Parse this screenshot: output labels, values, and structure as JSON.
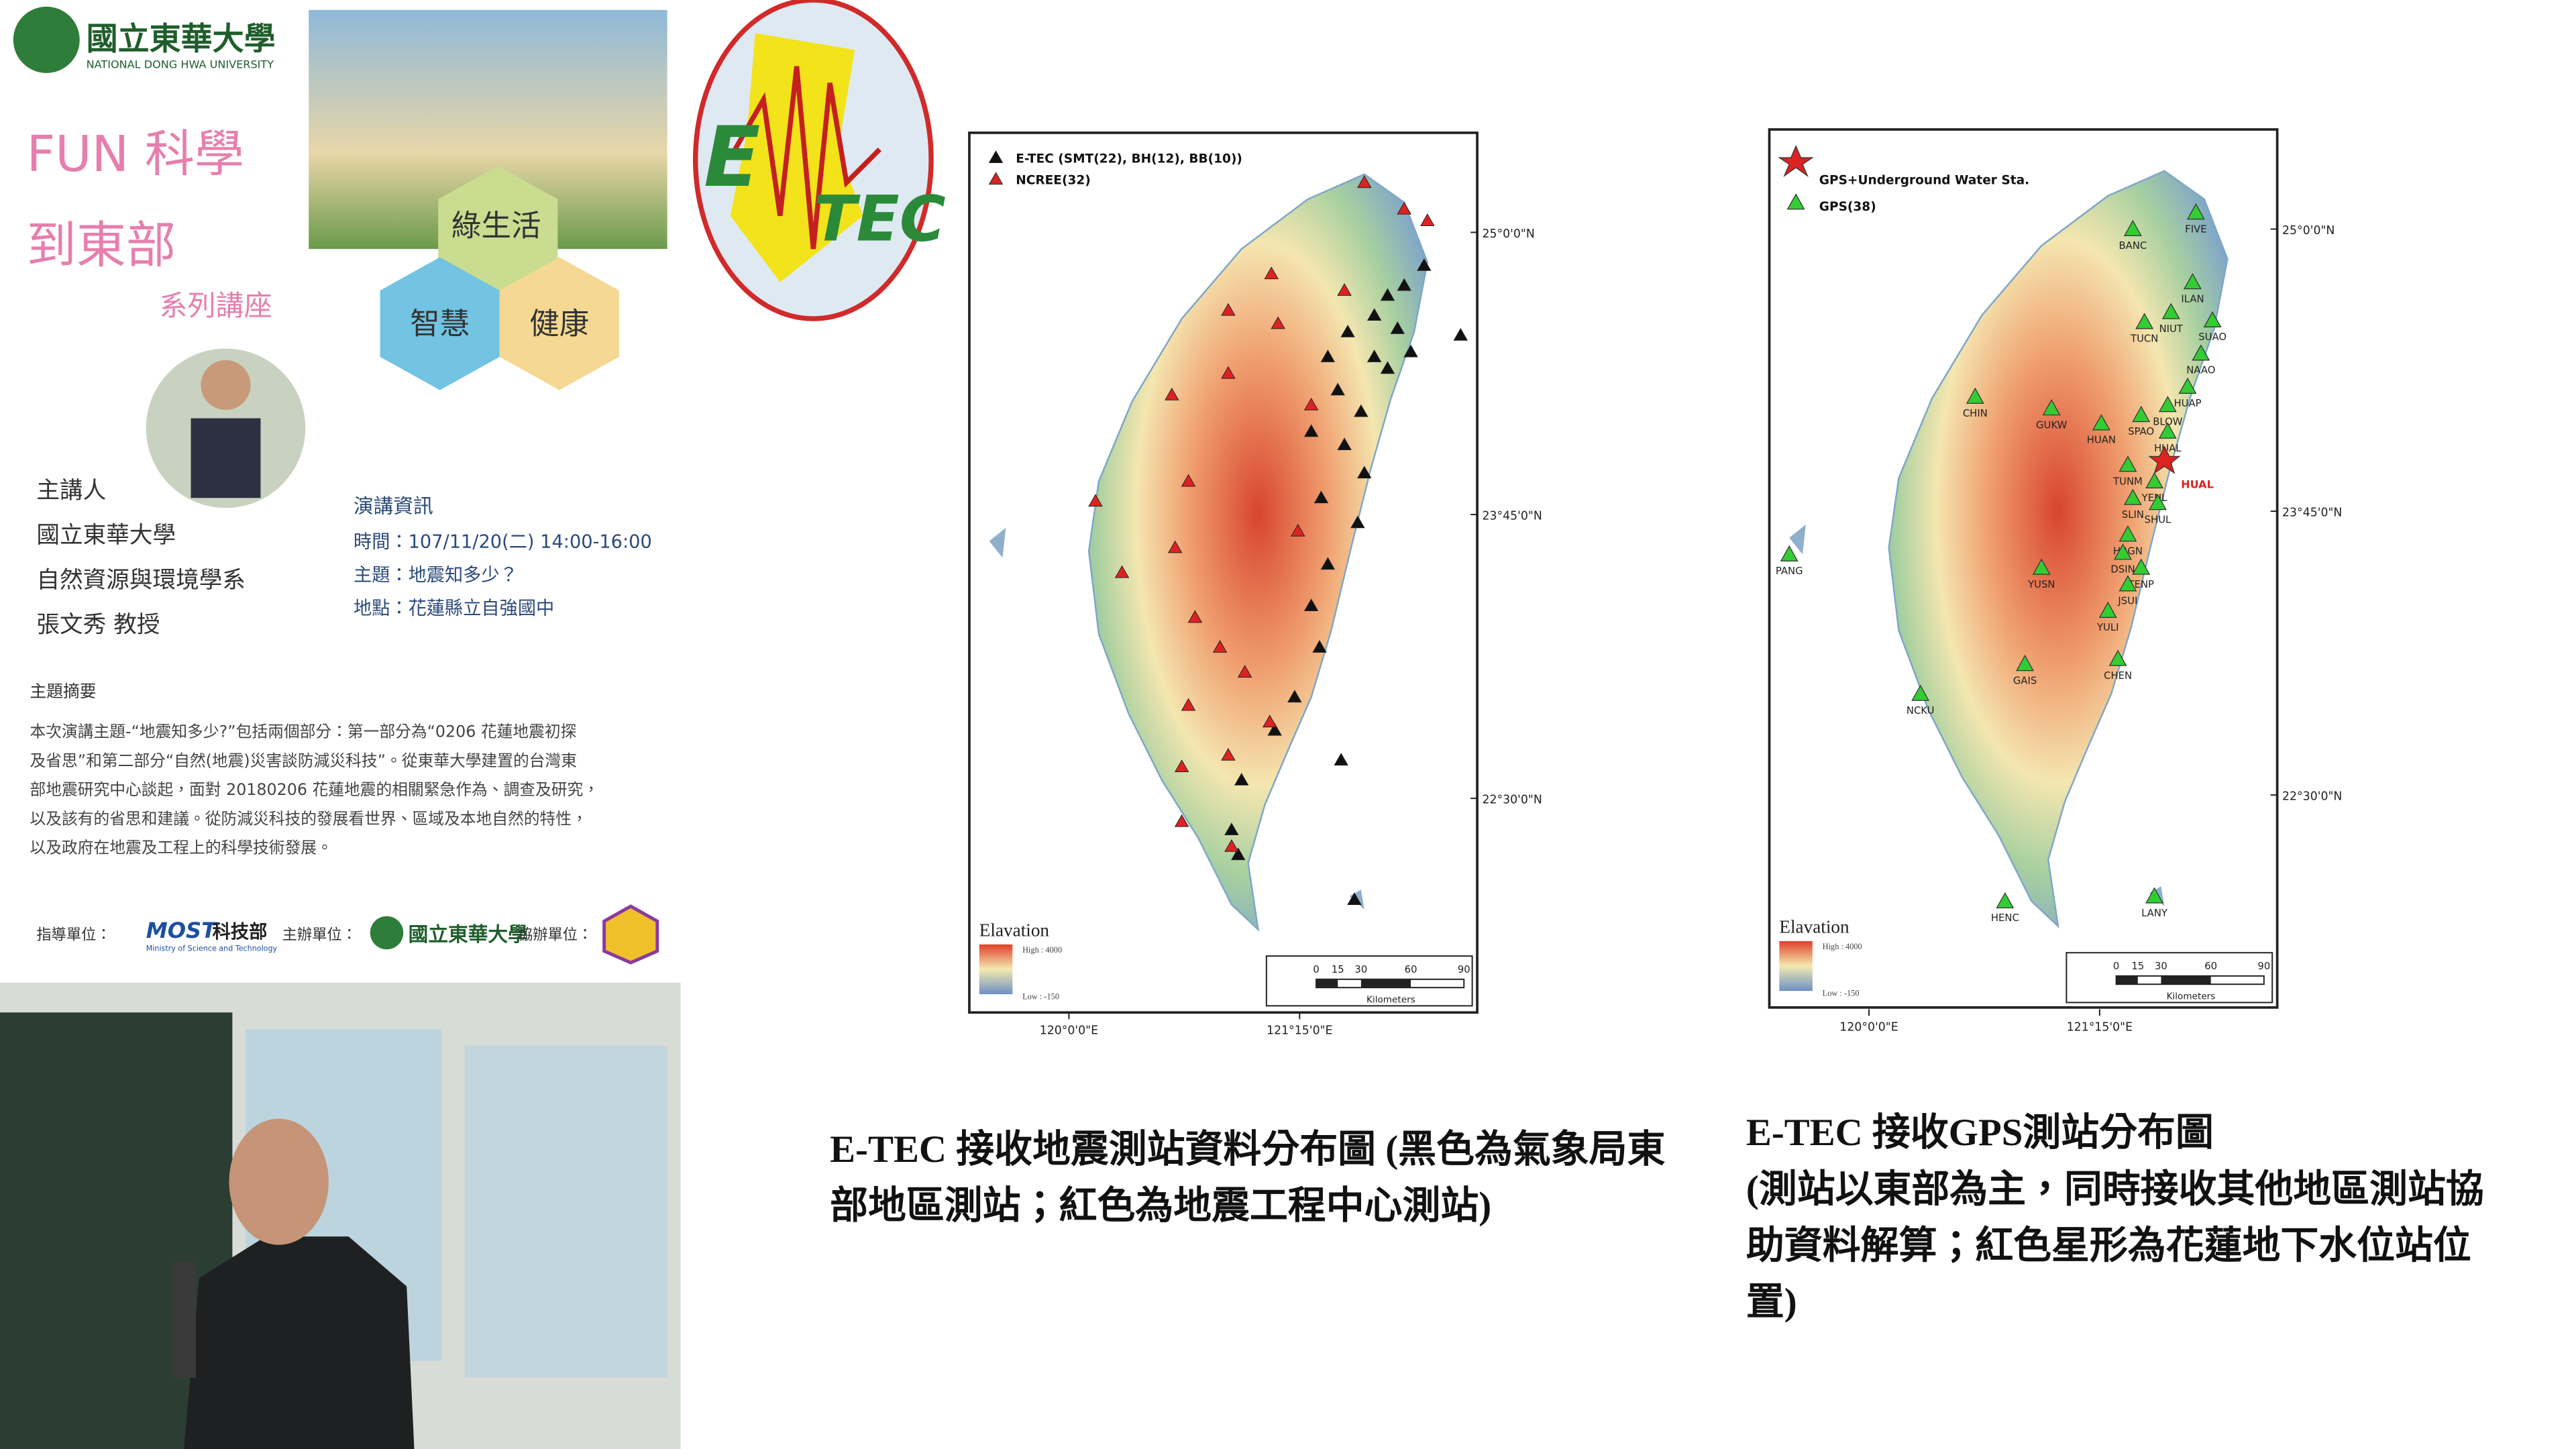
{
  "poster": {
    "university": "國立東華大學",
    "university_en": "NATIONAL DONG HWA UNIVERSITY",
    "title_lines": [
      "FUN 科學",
      "到東部"
    ],
    "series": "系列講座",
    "themes": [
      "綠生活",
      "智慧",
      "健康"
    ],
    "speaker_label": "主講人",
    "speaker_lines": [
      "國立東華大學",
      "自然資源與環境學系",
      "張文秀 教授"
    ],
    "info_title": "演講資訊",
    "info_lines": [
      "時間：107/11/20(二) 14:00-16:00",
      "主題：地震知多少？",
      "地點：花蓮縣立自強國中"
    ],
    "abstract_title": "主題摘要",
    "abstract_lines": [
      "本次演講主題-“地震知多少?”包括兩個部分：第一部分為“0206 花蓮地震初探",
      "及省思”和第二部分“自然(地震)災害談防減災科技”。從東華大學建置的台灣東",
      "部地震研究中心談起，面對 20180206 花蓮地震的相關緊急作為、調查及研究，",
      "以及該有的省思和建議。從防減災科技的發展看世界、區域及本地自然的特性，",
      "以及政府在地震及工程上的科學技術發展。"
    ],
    "sponsor_guide": "指導單位：",
    "sponsor_most": "MOST",
    "sponsor_most_zh": "科技部",
    "sponsor_most_en": "Ministry of Science and Technology",
    "sponsor_host": "主辦單位：",
    "sponsor_host_name": "國立東華大學",
    "sponsor_co": "協辦單位："
  },
  "logo": {
    "left": "E",
    "right": "TEC"
  },
  "maps": [
    {
      "legend": [
        "E-TEC (SMT(22), BH(12), BB(10))",
        "NCREE(32)"
      ],
      "lat_labels": [
        "25°0'0\"N",
        "23°45'0\"N",
        "22°30'0\"N"
      ],
      "lon_labels": [
        "120°0'0\"E",
        "121°15'0\"E"
      ],
      "elevation_title": "Elavation",
      "elevation_high": "High : 4000",
      "elevation_low": "Low : -150",
      "scale_ticks": [
        0,
        15,
        30,
        60,
        90
      ],
      "scale_unit": "Kilometers"
    },
    {
      "legend": [
        "GPS+Underground Water Sta.",
        "GPS(38)"
      ],
      "lat_labels": [
        "25°0'0\"N",
        "23°45'0\"N",
        "22°30'0\"N"
      ],
      "lon_labels": [
        "120°0'0\"E",
        "121°15'0\"E"
      ],
      "elevation_title": "Elavation",
      "elevation_high": "High : 4000",
      "elevation_low": "Low : -150",
      "scale_ticks": [
        0,
        15,
        30,
        60,
        90
      ],
      "scale_unit": "Kilometers",
      "stations": [
        "BANC",
        "FIVE",
        "ILAN",
        "NIUT",
        "TUCN",
        "SUAO",
        "NAAO",
        "HUAP",
        "BLOW",
        "CHIN",
        "GUKW",
        "HUAN",
        "SPAO",
        "HUAL",
        "TUNM",
        "YENL",
        "SHUL",
        "SLIN",
        "HRGN",
        "DSIN",
        "TENP",
        "JSUI",
        "YUSN",
        "YULI",
        "CHEN",
        "GAIS",
        "NCKU",
        "PANG",
        "HENC",
        "LANY"
      ],
      "highlight_label": "HUAL"
    }
  ],
  "captions": [
    [
      "E-TEC 接收地震測站資料分布圖 (黑色為氣象局東",
      "部地區測站；紅色為地震工程中心測站)"
    ],
    [
      "E-TEC 接收GPS測站分布圖",
      "(測站以東部為主，同時接收其他地區測站協",
      "助資料解算；紅色星形為花蓮地下水位站位",
      "置)"
    ]
  ]
}
